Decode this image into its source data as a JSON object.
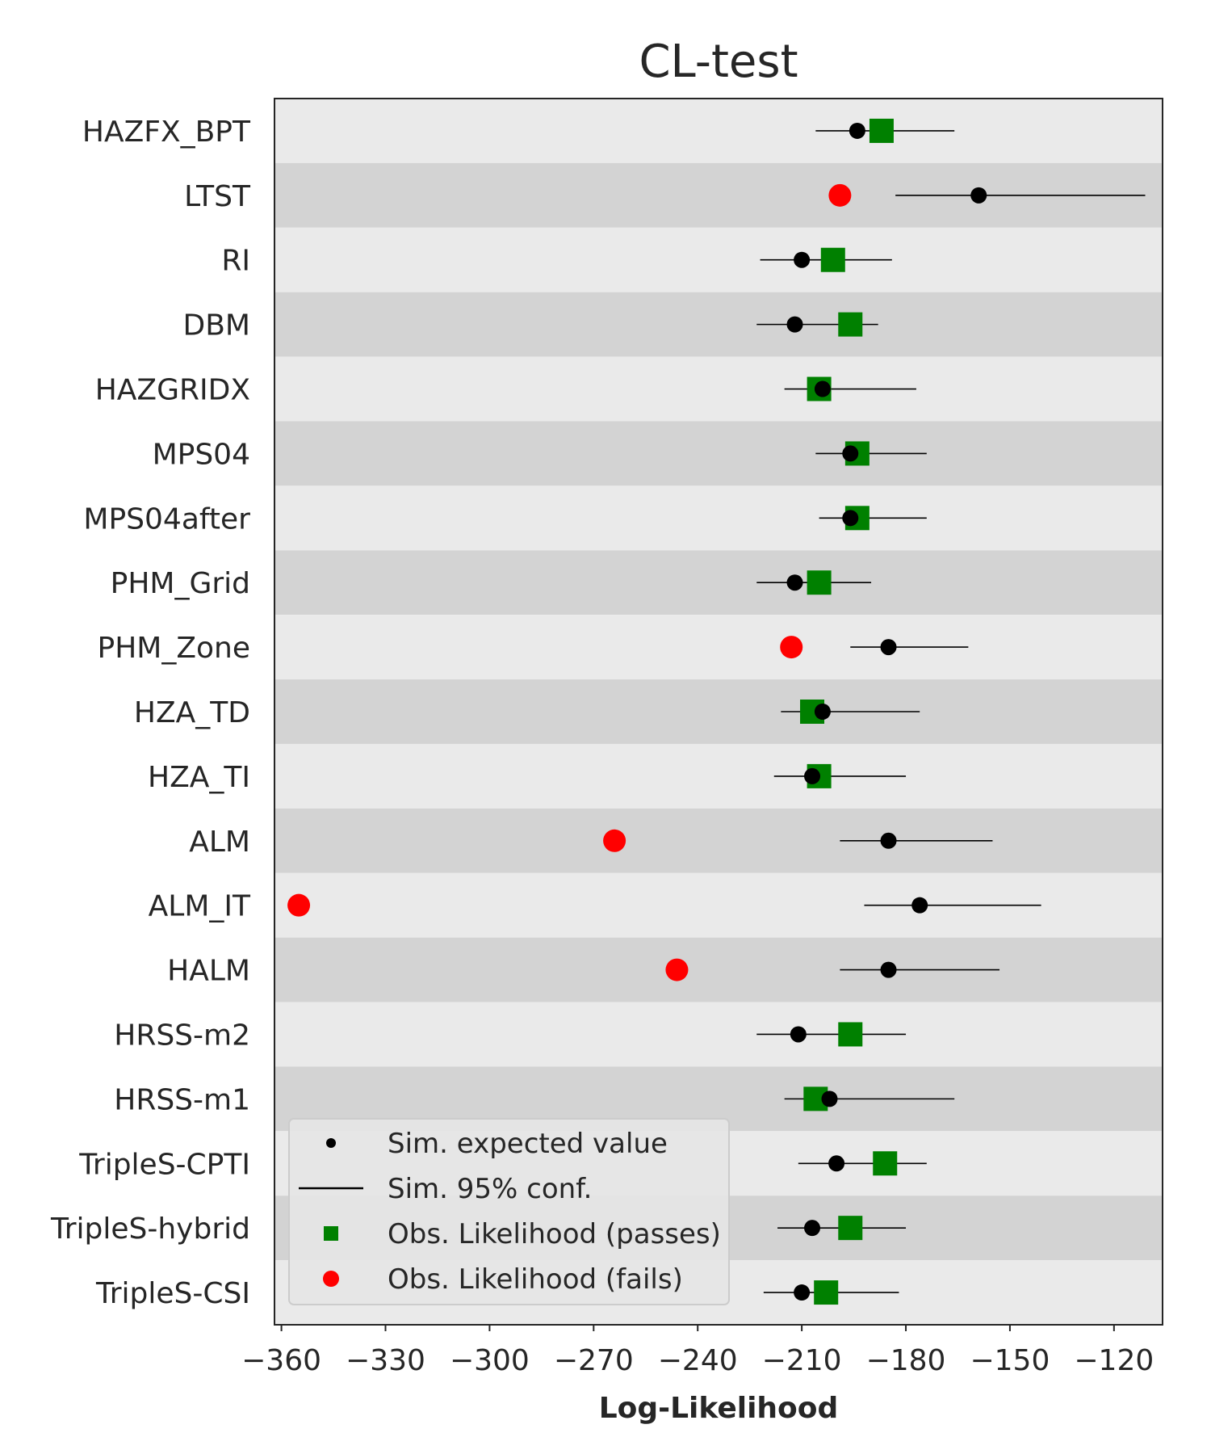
{
  "chart_data": {
    "type": "scatter",
    "title": "CL-test",
    "xlabel": "Log-Likelihood",
    "ylabel": "",
    "xlim": [
      -362,
      -106
    ],
    "xticks": [
      -360,
      -330,
      -300,
      -270,
      -240,
      -210,
      -180,
      -150,
      -120
    ],
    "xtick_labels": [
      "−360",
      "−330",
      "−300",
      "−270",
      "−240",
      "−210",
      "−180",
      "−150",
      "−120"
    ],
    "grid": false,
    "legend_position": "lower-left",
    "colors": {
      "band_light": "#eaeaea",
      "band_dark": "#d3d3d3",
      "pass": "#008000",
      "fail": "#ff0000",
      "sim": "#000000",
      "axis": "#262626"
    },
    "legend": [
      {
        "label": "Sim. expected value",
        "marker": "dot"
      },
      {
        "label": "Sim. 95% conf.",
        "marker": "line"
      },
      {
        "label": "Obs. Likelihood (passes)",
        "marker": "square"
      },
      {
        "label": "Obs. Likelihood (fails)",
        "marker": "circle"
      }
    ],
    "models": [
      {
        "name": "HAZFX_BPT",
        "sim_expected": -194,
        "sim_lo": -206,
        "sim_hi": -166,
        "obs": -187,
        "passes": true
      },
      {
        "name": "LTST",
        "sim_expected": -159,
        "sim_lo": -183,
        "sim_hi": -111,
        "obs": -199,
        "passes": false
      },
      {
        "name": "RI",
        "sim_expected": -210,
        "sim_lo": -222,
        "sim_hi": -184,
        "obs": -201,
        "passes": true
      },
      {
        "name": "DBM",
        "sim_expected": -212,
        "sim_lo": -223,
        "sim_hi": -188,
        "obs": -196,
        "passes": true
      },
      {
        "name": "HAZGRIDX",
        "sim_expected": -204,
        "sim_lo": -215,
        "sim_hi": -177,
        "obs": -205,
        "passes": true
      },
      {
        "name": "MPS04",
        "sim_expected": -196,
        "sim_lo": -206,
        "sim_hi": -174,
        "obs": -194,
        "passes": true
      },
      {
        "name": "MPS04after",
        "sim_expected": -196,
        "sim_lo": -205,
        "sim_hi": -174,
        "obs": -194,
        "passes": true
      },
      {
        "name": "PHM_Grid",
        "sim_expected": -212,
        "sim_lo": -223,
        "sim_hi": -190,
        "obs": -205,
        "passes": true
      },
      {
        "name": "PHM_Zone",
        "sim_expected": -185,
        "sim_lo": -196,
        "sim_hi": -162,
        "obs": -213,
        "passes": false
      },
      {
        "name": "HZA_TD",
        "sim_expected": -204,
        "sim_lo": -216,
        "sim_hi": -176,
        "obs": -207,
        "passes": true
      },
      {
        "name": "HZA_TI",
        "sim_expected": -207,
        "sim_lo": -218,
        "sim_hi": -180,
        "obs": -205,
        "passes": true
      },
      {
        "name": "ALM",
        "sim_expected": -185,
        "sim_lo": -199,
        "sim_hi": -155,
        "obs": -264,
        "passes": false
      },
      {
        "name": "ALM_IT",
        "sim_expected": -176,
        "sim_lo": -192,
        "sim_hi": -141,
        "obs": -355,
        "passes": false
      },
      {
        "name": "HALM",
        "sim_expected": -185,
        "sim_lo": -199,
        "sim_hi": -153,
        "obs": -246,
        "passes": false
      },
      {
        "name": "HRSS-m2",
        "sim_expected": -211,
        "sim_lo": -223,
        "sim_hi": -180,
        "obs": -196,
        "passes": true
      },
      {
        "name": "HRSS-m1",
        "sim_expected": -202,
        "sim_lo": -215,
        "sim_hi": -166,
        "obs": -206,
        "passes": true
      },
      {
        "name": "TripleS-CPTI",
        "sim_expected": -200,
        "sim_lo": -211,
        "sim_hi": -174,
        "obs": -186,
        "passes": true
      },
      {
        "name": "TripleS-hybrid",
        "sim_expected": -207,
        "sim_lo": -217,
        "sim_hi": -180,
        "obs": -196,
        "passes": true
      },
      {
        "name": "TripleS-CSI",
        "sim_expected": -210,
        "sim_lo": -221,
        "sim_hi": -182,
        "obs": -203,
        "passes": true
      }
    ]
  }
}
